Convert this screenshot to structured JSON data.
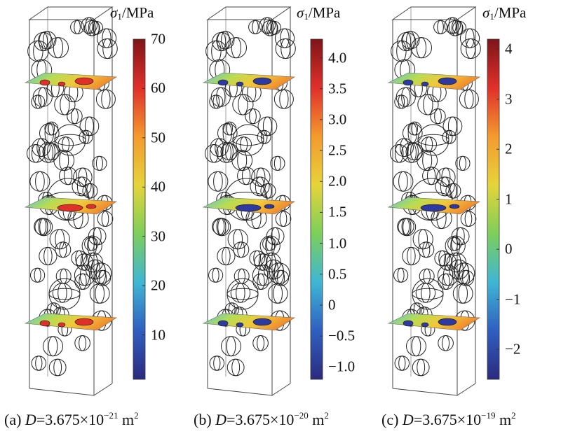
{
  "colorbar_label": {
    "symbol": "σ",
    "subscript": "1",
    "unit": "/MPa"
  },
  "panels": [
    {
      "id": "a",
      "caption": {
        "prefix": "(a) ",
        "var": "D",
        "eq": "=3.675×10",
        "exp": "−21",
        "unit": " m",
        "unit_exp": "2"
      },
      "colorbar": {
        "min": 1,
        "max": 70,
        "ticks": [
          {
            "value": 70,
            "label": "70"
          },
          {
            "value": 60,
            "label": "60"
          },
          {
            "value": 50,
            "label": "50"
          },
          {
            "value": 40,
            "label": "40"
          },
          {
            "value": 30,
            "label": "30"
          },
          {
            "value": 20,
            "label": "20"
          },
          {
            "value": 10,
            "label": "10"
          }
        ]
      }
    },
    {
      "id": "b",
      "caption": {
        "prefix": "(b) ",
        "var": "D",
        "eq": "=3.675×10",
        "exp": "−20",
        "unit": " m",
        "unit_exp": "2"
      },
      "colorbar": {
        "min": -1.2,
        "max": 4.3,
        "ticks": [
          {
            "value": 4.0,
            "label": "4.0"
          },
          {
            "value": 3.5,
            "label": "3.5"
          },
          {
            "value": 3.0,
            "label": "3.0"
          },
          {
            "value": 2.5,
            "label": "2.5"
          },
          {
            "value": 2.0,
            "label": "2.0"
          },
          {
            "value": 1.5,
            "label": "1.5"
          },
          {
            "value": 1.0,
            "label": "1.0"
          },
          {
            "value": 0.5,
            "label": "0.5"
          },
          {
            "value": 0,
            "label": "0"
          },
          {
            "value": -0.5,
            "label": "−0.5"
          },
          {
            "value": -1.0,
            "label": "−1.0"
          }
        ]
      }
    },
    {
      "id": "c",
      "caption": {
        "prefix": "(c) ",
        "var": "D",
        "eq": "=3.675×10",
        "exp": "−19",
        "unit": " m",
        "unit_exp": "2"
      },
      "colorbar": {
        "min": -2.6,
        "max": 4.2,
        "ticks": [
          {
            "value": 4,
            "label": "4"
          },
          {
            "value": 3,
            "label": "3"
          },
          {
            "value": 2,
            "label": "2"
          },
          {
            "value": 1,
            "label": "1"
          },
          {
            "value": 0,
            "label": "0"
          },
          {
            "value": -1,
            "label": "−1"
          },
          {
            "value": -2,
            "label": "−2"
          }
        ]
      }
    }
  ],
  "colormap": [
    "#2b2a7e",
    "#2f5fc0",
    "#3fb6d4",
    "#7ccf5a",
    "#e6d43a",
    "#f39a2e",
    "#e0302a",
    "#7e1518"
  ]
}
